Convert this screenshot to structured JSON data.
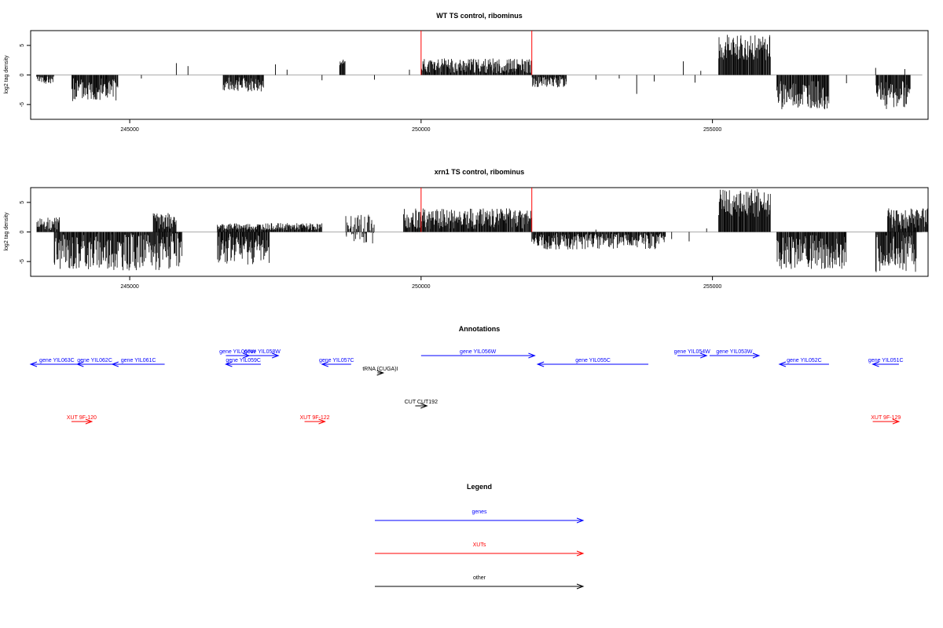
{
  "chart_data": [
    {
      "type": "bar",
      "title": "WT TS control, ribominus",
      "xlabel": "",
      "ylabel": "log2 tag density",
      "xlim": [
        243300,
        258700
      ],
      "ylim": [
        -7.5,
        7.5
      ],
      "xticks": [
        245000,
        250000,
        255000
      ],
      "yticks": [
        -5,
        0,
        5
      ],
      "markers": [
        250000,
        251900
      ],
      "segments": [
        {
          "x0": 243400,
          "x1": 243700,
          "lo": -1.5,
          "hi": -0.2,
          "seed": 3
        },
        {
          "x0": 244000,
          "x1": 244800,
          "lo": -4.5,
          "hi": -0.5,
          "seed": 5
        },
        {
          "x0": 246600,
          "x1": 247300,
          "lo": -2.8,
          "hi": -0.3,
          "seed": 7
        },
        {
          "x0": 248600,
          "x1": 248700,
          "lo": 1.5,
          "hi": 2.6,
          "seed": 2
        },
        {
          "x0": 250000,
          "x1": 251900,
          "lo": 0.3,
          "hi": 2.8,
          "seed": 11
        },
        {
          "x0": 251900,
          "x1": 252500,
          "lo": -2.2,
          "hi": -0.2,
          "seed": 13
        },
        {
          "x0": 255100,
          "x1": 256000,
          "lo": 2.5,
          "hi": 6.8,
          "seed": 17
        },
        {
          "x0": 256100,
          "x1": 257000,
          "lo": -5.8,
          "hi": -1.0,
          "seed": 19
        },
        {
          "x0": 257800,
          "x1": 258400,
          "lo": -5.8,
          "hi": -1.0,
          "seed": 23
        }
      ],
      "sparse": [
        {
          "x": 244600,
          "y": -0.7
        },
        {
          "x": 245200,
          "y": -0.6
        },
        {
          "x": 245800,
          "y": 2.0
        },
        {
          "x": 246000,
          "y": 1.5
        },
        {
          "x": 247500,
          "y": 1.8
        },
        {
          "x": 247700,
          "y": 0.9
        },
        {
          "x": 248300,
          "y": -0.9
        },
        {
          "x": 249200,
          "y": -0.8
        },
        {
          "x": 249800,
          "y": 0.9
        },
        {
          "x": 253000,
          "y": -0.8
        },
        {
          "x": 253400,
          "y": -0.6
        },
        {
          "x": 253700,
          "y": -3.2
        },
        {
          "x": 254000,
          "y": -1.1
        },
        {
          "x": 254500,
          "y": 2.3
        },
        {
          "x": 254800,
          "y": 0.7
        },
        {
          "x": 254700,
          "y": -1.3
        },
        {
          "x": 257300,
          "y": -1.4
        },
        {
          "x": 257800,
          "y": 1.2
        },
        {
          "x": 258300,
          "y": 1.0
        }
      ]
    },
    {
      "type": "bar",
      "title": "xrn1 TS control, ribominus",
      "xlabel": "",
      "ylabel": "log2 tag density",
      "xlim": [
        243300,
        258700
      ],
      "ylim": [
        -7.5,
        7.5
      ],
      "xticks": [
        245000,
        250000,
        255000
      ],
      "yticks": [
        -5,
        0,
        5
      ],
      "markers": [
        250000,
        251900
      ],
      "segments": [
        {
          "x0": 243400,
          "x1": 243800,
          "lo": 0.3,
          "hi": 2.5,
          "seed": 29
        },
        {
          "x0": 243700,
          "x1": 245900,
          "lo": -6.5,
          "hi": -0.2,
          "seed": 31
        },
        {
          "x0": 245400,
          "x1": 245800,
          "lo": 0.5,
          "hi": 3.2,
          "seed": 37
        },
        {
          "x0": 246500,
          "x1": 247400,
          "lo": -5.5,
          "hi": -0.3,
          "seed": 41
        },
        {
          "x0": 246500,
          "x1": 248300,
          "lo": 0.3,
          "hi": 1.5,
          "seed": 43
        },
        {
          "x0": 248700,
          "x1": 249200,
          "lo": -2.0,
          "hi": 3.0,
          "seed": 47
        },
        {
          "x0": 249700,
          "x1": 251900,
          "lo": 0.5,
          "hi": 4.0,
          "seed": 53
        },
        {
          "x0": 251900,
          "x1": 254200,
          "lo": -3.0,
          "hi": -0.2,
          "seed": 59
        },
        {
          "x0": 255100,
          "x1": 256000,
          "lo": 2.5,
          "hi": 7.3,
          "seed": 61
        },
        {
          "x0": 256100,
          "x1": 257300,
          "lo": -6.3,
          "hi": -0.5,
          "seed": 67
        },
        {
          "x0": 257800,
          "x1": 258500,
          "lo": -6.8,
          "hi": -0.5,
          "seed": 71
        },
        {
          "x0": 258000,
          "x1": 258700,
          "lo": 0.5,
          "hi": 4.0,
          "seed": 73
        }
      ],
      "sparse": [
        {
          "x": 254300,
          "y": -1.2
        },
        {
          "x": 254600,
          "y": -1.6
        },
        {
          "x": 254900,
          "y": 0.6
        },
        {
          "x": 253000,
          "y": 0.4
        }
      ]
    }
  ],
  "annotations": {
    "title": "Annotations",
    "items": [
      {
        "label": "gene YIL063C",
        "start": 243300,
        "end": 244200,
        "dir": "left",
        "kind": "gene",
        "row": 1
      },
      {
        "label": "gene YIL062C",
        "start": 244100,
        "end": 244700,
        "dir": "left",
        "kind": "gene",
        "row": 1
      },
      {
        "label": "gene YIL061C",
        "start": 244700,
        "end": 245600,
        "dir": "left",
        "kind": "gene",
        "row": 1
      },
      {
        "label": "gene YIL060W",
        "start": 246650,
        "end": 247050,
        "dir": "right",
        "kind": "gene",
        "row": 0
      },
      {
        "label": "gene YIL058W",
        "start": 247000,
        "end": 247550,
        "dir": "right",
        "kind": "gene",
        "row": 0
      },
      {
        "label": "gene YIL059C",
        "start": 246650,
        "end": 247250,
        "dir": "left",
        "kind": "gene",
        "row": 1
      },
      {
        "label": "gene YIL057C",
        "start": 248300,
        "end": 248800,
        "dir": "left",
        "kind": "gene",
        "row": 1
      },
      {
        "label": "tRNA (CUGA)I",
        "start": 249250,
        "end": 249350,
        "dir": "right",
        "kind": "other",
        "row": 2
      },
      {
        "label": "gene YIL056W",
        "start": 250000,
        "end": 251950,
        "dir": "right",
        "kind": "gene",
        "row": 0
      },
      {
        "label": "gene YIL055C",
        "start": 252000,
        "end": 253900,
        "dir": "left",
        "kind": "gene",
        "row": 1
      },
      {
        "label": "gene YIL054W",
        "start": 254400,
        "end": 254900,
        "dir": "right",
        "kind": "gene",
        "row": 0
      },
      {
        "label": "gene YIL053W",
        "start": 254950,
        "end": 255800,
        "dir": "right",
        "kind": "gene",
        "row": 0
      },
      {
        "label": "gene YIL052C",
        "start": 256150,
        "end": 257000,
        "dir": "left",
        "kind": "gene",
        "row": 1
      },
      {
        "label": "gene YIL051C",
        "start": 257750,
        "end": 258200,
        "dir": "left",
        "kind": "gene",
        "row": 1
      },
      {
        "label": "CUT CUT192",
        "start": 249900,
        "end": 250100,
        "dir": "right",
        "kind": "other",
        "row": 3
      },
      {
        "label": "XUT 9F-120",
        "start": 244000,
        "end": 244350,
        "dir": "right",
        "kind": "xut",
        "row": 4
      },
      {
        "label": "XUT 9F-122",
        "start": 248000,
        "end": 248350,
        "dir": "right",
        "kind": "xut",
        "row": 4
      },
      {
        "label": "XUT 9F-129",
        "start": 257750,
        "end": 258200,
        "dir": "right",
        "kind": "xut",
        "row": 4
      }
    ]
  },
  "legend": {
    "title": "Legend",
    "entries": [
      {
        "label": "genes",
        "color": "#0000ff"
      },
      {
        "label": "XUTs",
        "color": "#ff0000"
      },
      {
        "label": "other",
        "color": "#000000"
      }
    ]
  }
}
